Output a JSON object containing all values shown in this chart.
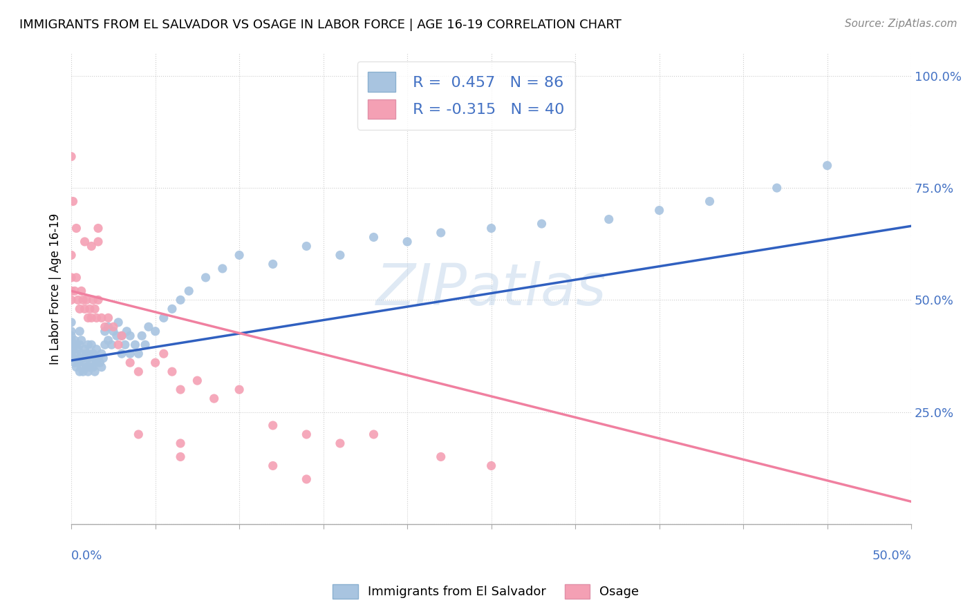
{
  "title": "IMMIGRANTS FROM EL SALVADOR VS OSAGE IN LABOR FORCE | AGE 16-19 CORRELATION CHART",
  "source": "Source: ZipAtlas.com",
  "watermark": "ZIPatlas",
  "blue_R": 0.457,
  "blue_N": 86,
  "pink_R": -0.315,
  "pink_N": 40,
  "blue_color": "#a8c4e0",
  "pink_color": "#f4a0b4",
  "blue_line_color": "#3060c0",
  "pink_line_color": "#f080a0",
  "blue_scatter_x": [
    0.0,
    0.0,
    0.0,
    0.0,
    0.0,
    0.0,
    0.001,
    0.001,
    0.002,
    0.002,
    0.003,
    0.003,
    0.003,
    0.004,
    0.004,
    0.005,
    0.005,
    0.005,
    0.005,
    0.006,
    0.006,
    0.006,
    0.007,
    0.007,
    0.008,
    0.008,
    0.009,
    0.009,
    0.01,
    0.01,
    0.01,
    0.011,
    0.011,
    0.012,
    0.012,
    0.013,
    0.013,
    0.014,
    0.014,
    0.015,
    0.015,
    0.016,
    0.017,
    0.018,
    0.018,
    0.019,
    0.02,
    0.02,
    0.022,
    0.022,
    0.024,
    0.025,
    0.027,
    0.028,
    0.03,
    0.03,
    0.032,
    0.033,
    0.035,
    0.035,
    0.038,
    0.04,
    0.042,
    0.044,
    0.046,
    0.05,
    0.055,
    0.06,
    0.065,
    0.07,
    0.08,
    0.09,
    0.1,
    0.12,
    0.14,
    0.16,
    0.18,
    0.2,
    0.22,
    0.25,
    0.28,
    0.32,
    0.35,
    0.38,
    0.42,
    0.45
  ],
  "blue_scatter_y": [
    0.38,
    0.39,
    0.41,
    0.42,
    0.43,
    0.45,
    0.37,
    0.4,
    0.36,
    0.41,
    0.35,
    0.38,
    0.4,
    0.36,
    0.39,
    0.34,
    0.37,
    0.4,
    0.43,
    0.35,
    0.38,
    0.41,
    0.34,
    0.37,
    0.36,
    0.39,
    0.35,
    0.38,
    0.34,
    0.37,
    0.4,
    0.35,
    0.38,
    0.36,
    0.4,
    0.35,
    0.38,
    0.34,
    0.37,
    0.36,
    0.39,
    0.37,
    0.36,
    0.35,
    0.38,
    0.37,
    0.4,
    0.43,
    0.41,
    0.44,
    0.4,
    0.43,
    0.42,
    0.45,
    0.38,
    0.42,
    0.4,
    0.43,
    0.38,
    0.42,
    0.4,
    0.38,
    0.42,
    0.4,
    0.44,
    0.43,
    0.46,
    0.48,
    0.5,
    0.52,
    0.55,
    0.57,
    0.6,
    0.58,
    0.62,
    0.6,
    0.64,
    0.63,
    0.65,
    0.66,
    0.67,
    0.68,
    0.7,
    0.72,
    0.75,
    0.8
  ],
  "pink_scatter_x": [
    0.0,
    0.0,
    0.0,
    0.0,
    0.002,
    0.003,
    0.004,
    0.005,
    0.006,
    0.007,
    0.008,
    0.009,
    0.01,
    0.011,
    0.012,
    0.013,
    0.014,
    0.015,
    0.016,
    0.018,
    0.02,
    0.022,
    0.025,
    0.028,
    0.03,
    0.035,
    0.04,
    0.05,
    0.055,
    0.06,
    0.065,
    0.075,
    0.085,
    0.1,
    0.12,
    0.14,
    0.16,
    0.18,
    0.22,
    0.25
  ],
  "pink_scatter_y": [
    0.5,
    0.52,
    0.55,
    0.6,
    0.52,
    0.55,
    0.5,
    0.48,
    0.52,
    0.5,
    0.48,
    0.5,
    0.46,
    0.48,
    0.46,
    0.5,
    0.48,
    0.46,
    0.5,
    0.46,
    0.44,
    0.46,
    0.44,
    0.4,
    0.42,
    0.36,
    0.34,
    0.36,
    0.38,
    0.34,
    0.3,
    0.32,
    0.28,
    0.3,
    0.22,
    0.2,
    0.18,
    0.2,
    0.15,
    0.13
  ],
  "pink_outlier_x": [
    0.0,
    0.001,
    0.003,
    0.008,
    0.012,
    0.016,
    0.016,
    0.04,
    0.065,
    0.065,
    0.12,
    0.14
  ],
  "pink_outlier_y": [
    0.82,
    0.72,
    0.66,
    0.63,
    0.62,
    0.63,
    0.66,
    0.2,
    0.18,
    0.15,
    0.13,
    0.1
  ],
  "blue_line_x0": 0.0,
  "blue_line_y0": 0.365,
  "blue_line_x1": 0.5,
  "blue_line_y1": 0.665,
  "pink_line_x0": 0.0,
  "pink_line_y0": 0.52,
  "pink_line_x1": 0.5,
  "pink_line_y1": 0.05,
  "xlim": [
    0.0,
    0.5
  ],
  "ylim": [
    0.0,
    1.05
  ],
  "legend_label_blue": "Immigrants from El Salvador",
  "legend_label_pink": "Osage",
  "ylabel": "In Labor Force | Age 16-19"
}
